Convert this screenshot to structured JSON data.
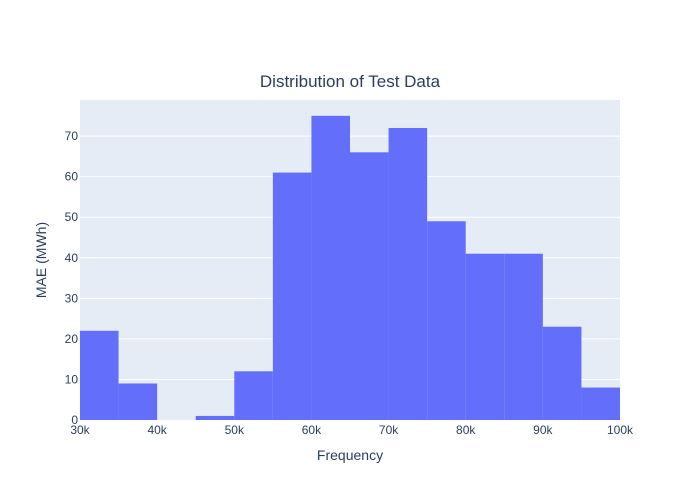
{
  "chart_data": {
    "type": "bar",
    "title": "Distribution of Test Data",
    "xlabel": "Frequency",
    "ylabel": "MAE (MWh)",
    "bins": [
      {
        "start": 30000,
        "end": 35000,
        "value": 22
      },
      {
        "start": 35000,
        "end": 40000,
        "value": 9
      },
      {
        "start": 40000,
        "end": 45000,
        "value": 0
      },
      {
        "start": 45000,
        "end": 50000,
        "value": 1
      },
      {
        "start": 50000,
        "end": 55000,
        "value": 12
      },
      {
        "start": 55000,
        "end": 60000,
        "value": 61
      },
      {
        "start": 60000,
        "end": 65000,
        "value": 75
      },
      {
        "start": 65000,
        "end": 70000,
        "value": 66
      },
      {
        "start": 70000,
        "end": 75000,
        "value": 72
      },
      {
        "start": 75000,
        "end": 80000,
        "value": 49
      },
      {
        "start": 80000,
        "end": 85000,
        "value": 41
      },
      {
        "start": 85000,
        "end": 90000,
        "value": 41
      },
      {
        "start": 90000,
        "end": 95000,
        "value": 23
      },
      {
        "start": 95000,
        "end": 100000,
        "value": 8
      }
    ],
    "xlim": [
      30000,
      100000
    ],
    "ylim": [
      0,
      78.9
    ],
    "x_ticks": [
      {
        "value": 30000,
        "label": "30k"
      },
      {
        "value": 40000,
        "label": "40k"
      },
      {
        "value": 50000,
        "label": "50k"
      },
      {
        "value": 60000,
        "label": "60k"
      },
      {
        "value": 70000,
        "label": "70k"
      },
      {
        "value": 80000,
        "label": "80k"
      },
      {
        "value": 90000,
        "label": "90k"
      },
      {
        "value": 100000,
        "label": "100k"
      }
    ],
    "y_ticks": [
      {
        "value": 0,
        "label": "0"
      },
      {
        "value": 10,
        "label": "10"
      },
      {
        "value": 20,
        "label": "20"
      },
      {
        "value": 30,
        "label": "30"
      },
      {
        "value": 40,
        "label": "40"
      },
      {
        "value": 50,
        "label": "50"
      },
      {
        "value": 60,
        "label": "60"
      },
      {
        "value": 70,
        "label": "70"
      }
    ],
    "grid": true,
    "legend": "none",
    "colors": {
      "bar": "#636efa",
      "plot_bg": "#e5ecf6",
      "grid": "#ffffff",
      "text": "#2a3f5f"
    }
  }
}
